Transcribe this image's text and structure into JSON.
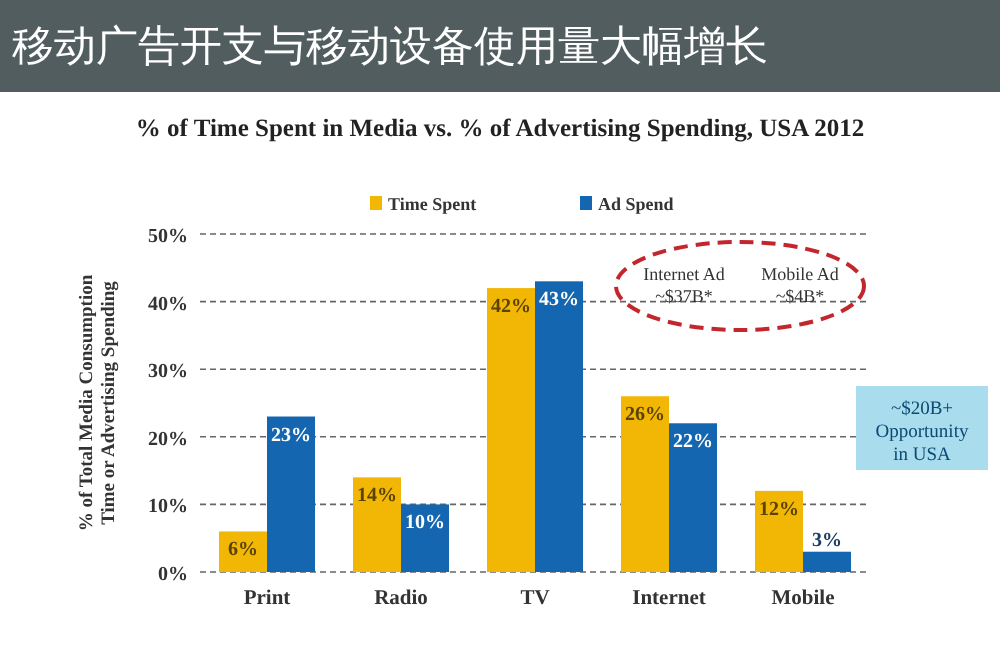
{
  "chart_data": {
    "type": "bar",
    "title": "移动广告开支与移动设备使用量大幅增长",
    "subtitle": "% of Time Spent in Media vs. % of Advertising Spending, USA 2012",
    "ylabel": "% of Total Media Consumption Time or Advertising Spending",
    "categories": [
      "Print",
      "Radio",
      "TV",
      "Internet",
      "Mobile"
    ],
    "series": [
      {
        "name": "Time Spent",
        "color": "#f2b705",
        "values": [
          6,
          14,
          42,
          26,
          12
        ],
        "value_labels": [
          "6%",
          "14%",
          "42%",
          "26%",
          "12%"
        ]
      },
      {
        "name": "Ad Spend",
        "color": "#1566b0",
        "values": [
          23,
          10,
          43,
          22,
          3
        ],
        "value_labels": [
          "23%",
          "10%",
          "43%",
          "22%",
          "3%"
        ]
      }
    ],
    "ylim": [
      0,
      50
    ],
    "yticks": [
      {
        "value": 0,
        "label": "0%"
      },
      {
        "value": 10,
        "label": "10%"
      },
      {
        "value": 20,
        "label": "20%"
      },
      {
        "value": 30,
        "label": "30%"
      },
      {
        "value": 40,
        "label": "40%"
      },
      {
        "value": 50,
        "label": "50%"
      }
    ],
    "grid": "y",
    "legend": "top",
    "annotations": [
      "Internet Ad ~$37B*",
      "Mobile Ad ~$4B*",
      "~$20B+ Opportunity in USA"
    ]
  }
}
